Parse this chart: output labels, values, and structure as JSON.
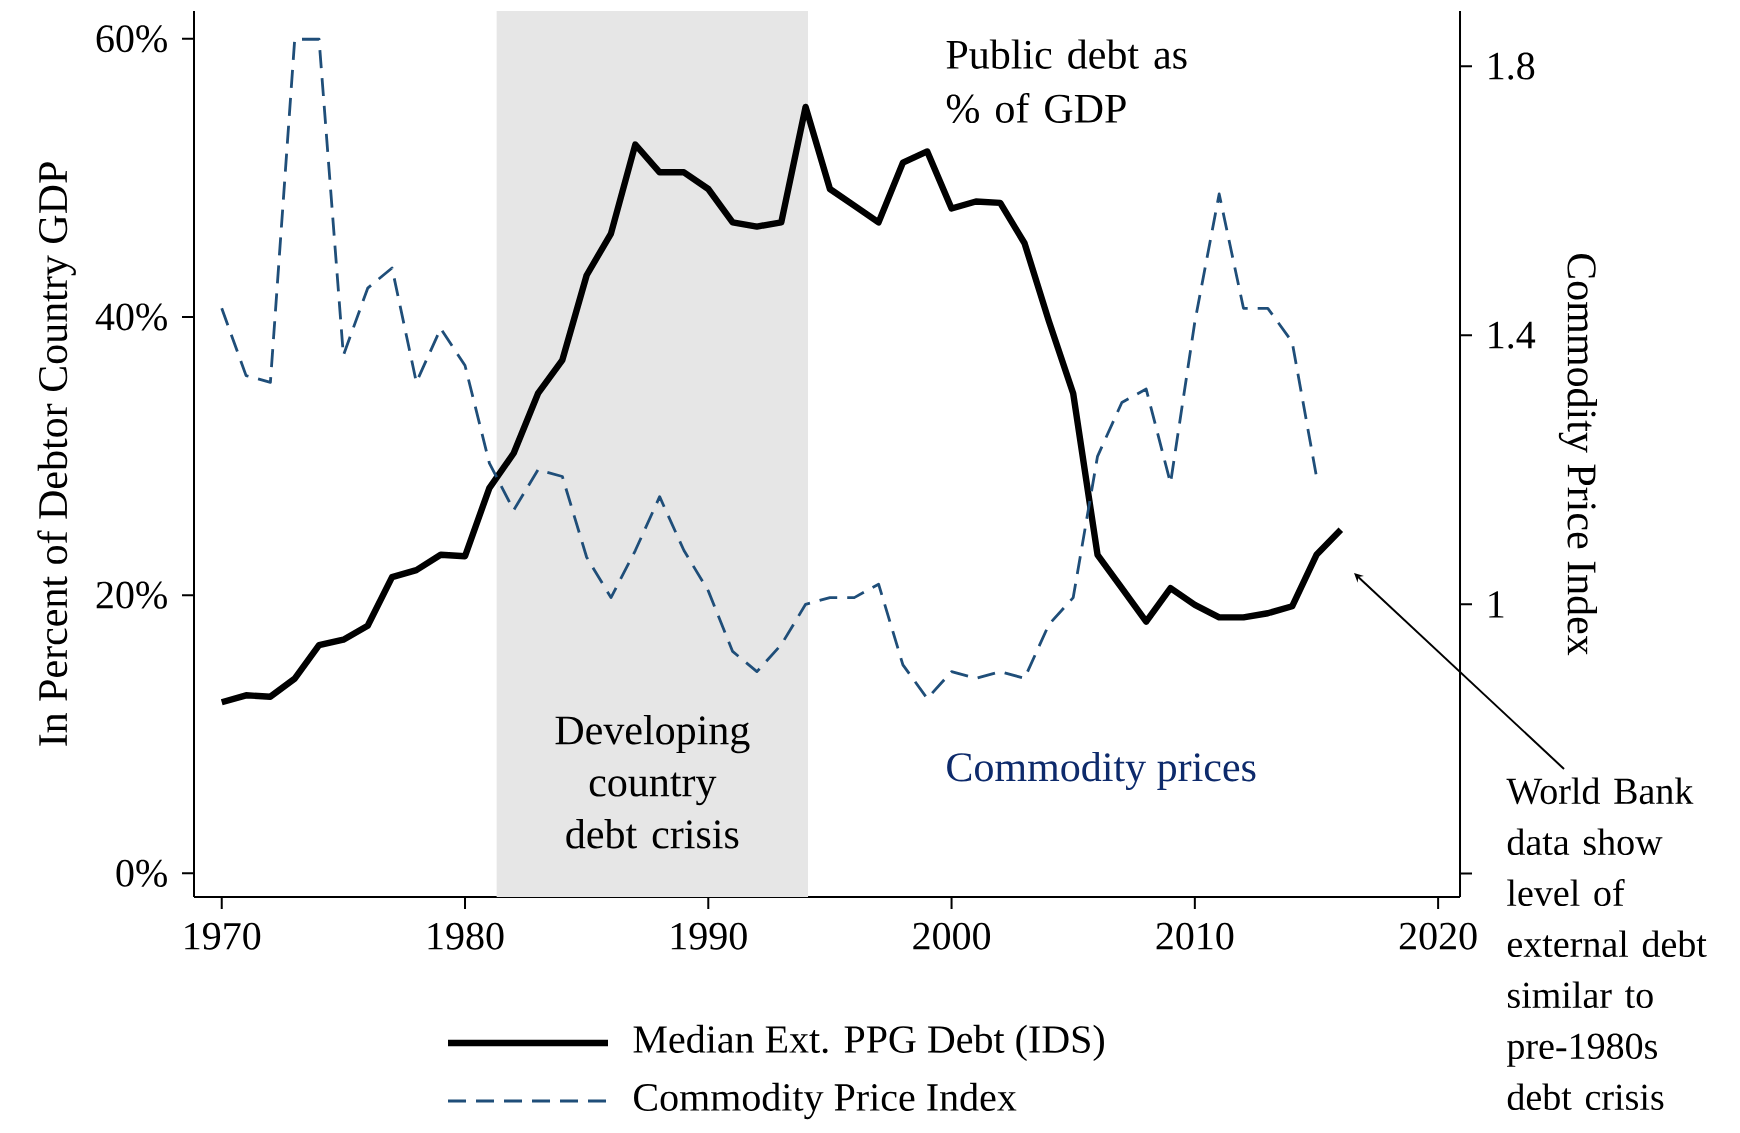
{
  "chart_data": {
    "type": "line",
    "x": [
      1970,
      1971,
      1972,
      1973,
      1974,
      1975,
      1976,
      1977,
      1978,
      1979,
      1980,
      1981,
      1982,
      1983,
      1984,
      1985,
      1986,
      1987,
      1988,
      1989,
      1990,
      1991,
      1992,
      1993,
      1994,
      1995,
      1996,
      1997,
      1998,
      1999,
      2000,
      2001,
      2002,
      2003,
      2004,
      2005,
      2006,
      2007,
      2008,
      2009,
      2010,
      2011,
      2012,
      2013,
      2014,
      2015,
      2016
    ],
    "series": [
      {
        "name": "Median Ext. PPG Debt (IDS)",
        "color": "#000000",
        "line_style": "solid",
        "values": [
          12.3,
          12.8,
          12.7,
          14.0,
          16.4,
          16.8,
          17.8,
          21.3,
          21.8,
          22.9,
          22.8,
          27.7,
          30.2,
          34.5,
          36.9,
          43.0,
          46.0,
          52.4,
          50.4,
          50.4,
          49.2,
          46.8,
          46.5,
          46.8,
          55.1,
          49.2,
          48.0,
          46.8,
          51.1,
          51.9,
          47.8,
          48.3,
          48.2,
          45.3,
          39.7,
          34.5,
          22.9,
          20.5,
          18.1,
          20.5,
          19.3,
          18.4,
          18.4,
          18.7,
          19.2,
          22.9,
          24.7
        ]
      },
      {
        "name": "Commodity Price Index",
        "color": "#1f4e79",
        "line_style": "dashed",
        "axis": "y2",
        "values": [
          1.44,
          1.34,
          1.33,
          1.84,
          1.84,
          1.37,
          1.47,
          1.5,
          1.33,
          1.41,
          1.355,
          1.21,
          1.14,
          1.2,
          1.19,
          1.07,
          1.01,
          1.08,
          1.16,
          1.08,
          1.02,
          0.93,
          0.9,
          0.94,
          1.0,
          1.01,
          1.01,
          1.03,
          0.91,
          0.86,
          0.9,
          0.89,
          0.9,
          0.89,
          0.97,
          1.01,
          1.22,
          1.3,
          1.32,
          1.18,
          1.42,
          1.61,
          1.44,
          1.44,
          1.39,
          1.19,
          null
        ]
      }
    ],
    "ylabel": "In Percent of Debtor Country GDP",
    "y2label": "Commodity Price Index",
    "xlim": [
      1968.86,
      2020.9
    ],
    "xticks": [
      1970,
      1980,
      1990,
      2000,
      2010,
      2020
    ],
    "ylim": [
      -1.7,
      62
    ],
    "yticks": [
      {
        "value": 0,
        "label": "0%"
      },
      {
        "value": 20,
        "label": "20%"
      },
      {
        "value": 40,
        "label": "40%"
      },
      {
        "value": 60,
        "label": "60%"
      }
    ],
    "y2lim": [
      0.565,
      1.882
    ],
    "y2ticks": [
      {
        "value": 0.6,
        "label": null
      },
      1,
      1.4,
      1.8
    ],
    "bands": [
      {
        "axis": "x",
        "from": 1981.3,
        "to": 1994.1,
        "label": "Developing country debt crisis",
        "color": "#e6e6e6"
      }
    ],
    "annotations": [
      "Public debt as % of GDP",
      "Commodity prices",
      "World Bank data show level of external debt similar to pre-1980s debt crisis"
    ],
    "legend": "bottom",
    "grid": false
  }
}
